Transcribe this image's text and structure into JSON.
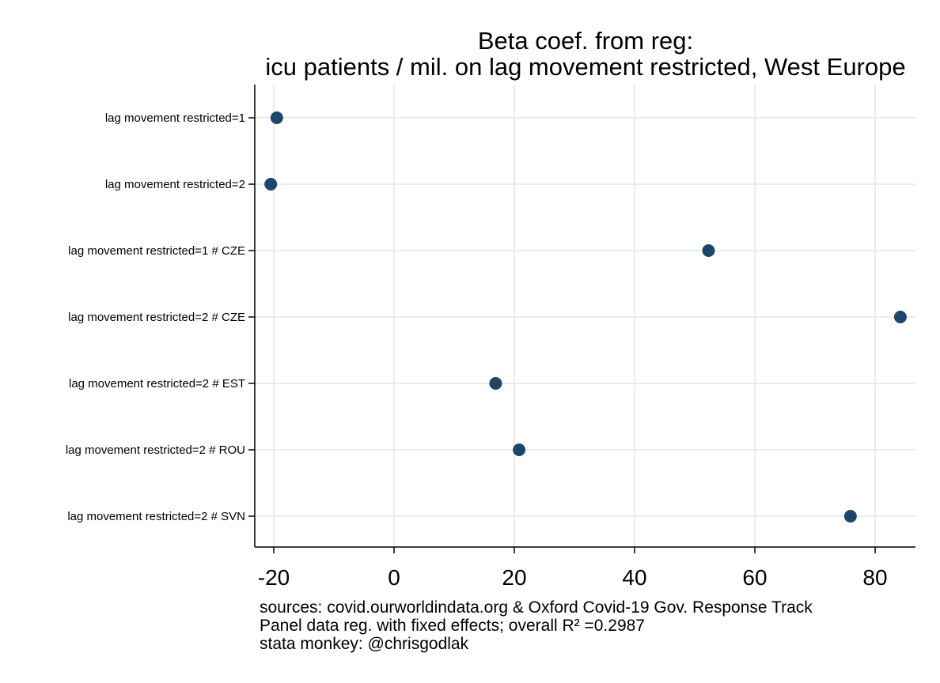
{
  "chart_data": {
    "type": "scatter",
    "title": "Beta coef. from reg:",
    "subtitle": "icu patients / mil. on lag movement restricted, West Europe",
    "categories": [
      "lag movement restricted=1",
      "lag movement restricted=2",
      "lag movement restricted=1 # CZE",
      "lag movement restricted=2 # CZE",
      "lag movement restricted=2 # EST",
      "lag movement restricted=2 # ROU",
      "lag movement restricted=2 # SVN"
    ],
    "values": [
      -19.5,
      -20.5,
      52.3,
      84.2,
      16.9,
      20.8,
      75.9
    ],
    "x_ticks": [
      -20,
      0,
      20,
      40,
      60,
      80
    ],
    "xlim": [
      -23,
      87
    ],
    "xlabel": "",
    "ylabel": "",
    "grid": true,
    "legend": "none",
    "marker_color": "#1a476f",
    "grid_color": "#e6e6e6",
    "notes": [
      "sources: covid.ourworldindata.org & Oxford Covid-19 Gov. Response Track",
      "Panel data reg. with fixed effects; overall R² =0.2987",
      "stata monkey: @chrisgodlak"
    ]
  }
}
